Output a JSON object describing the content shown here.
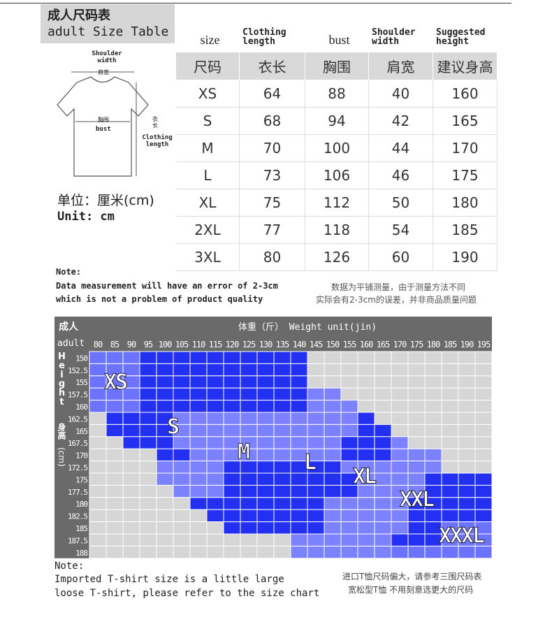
{
  "header": {
    "title_cn": "成人尺码表",
    "title_en": "adult Size Table"
  },
  "diagram": {
    "shoulder_en": "Shoulder width",
    "shoulder_cn": "肩宽",
    "bust_cn": "胸围",
    "bust_en": "bust",
    "length_cn": "衣长",
    "length_en": "Clothing length"
  },
  "unit": {
    "cn": "单位：厘米(cm)",
    "en": "Unit: cm"
  },
  "table": {
    "headers_en": [
      "size",
      "Clothing length",
      "bust",
      "Shoulder width",
      "Suggested height"
    ],
    "headers_cn": [
      "尺码",
      "衣长",
      "胸围",
      "肩宽",
      "建议身高"
    ],
    "rows": [
      [
        "XS",
        64,
        88,
        40,
        160
      ],
      [
        "S",
        68,
        94,
        42,
        165
      ],
      [
        "M",
        70,
        100,
        44,
        170
      ],
      [
        "L",
        73,
        106,
        46,
        175
      ],
      [
        "XL",
        75,
        112,
        50,
        180
      ],
      [
        "2XL",
        77,
        118,
        54,
        185
      ],
      [
        "3XL",
        80,
        126,
        60,
        190
      ]
    ]
  },
  "note1": {
    "label": "Note:",
    "en_lines": [
      "Data measurement will have an error of 2-3cm",
      "which is not a problem of product quality"
    ],
    "cn_lines": [
      "数据为平铺测量，由于测量方法不同",
      "实际会有2-3cm的误差，并非商品质量问题"
    ]
  },
  "chart": {
    "label_cn": "成人",
    "label_en": "adult",
    "weight_title": "体重（斤） Weight unit(jin)",
    "height_label_en": "Height",
    "height_label_cn": "身高",
    "height_unit": "(cm)",
    "weights": [
      80,
      85,
      90,
      95,
      100,
      105,
      110,
      115,
      120,
      125,
      130,
      135,
      140,
      145,
      150,
      155,
      160,
      165,
      170,
      175,
      180,
      185,
      190,
      195
    ],
    "sizes": [
      {
        "name": "XS",
        "color": "#6c74ff"
      },
      {
        "name": "S",
        "color": "#2330f2"
      },
      {
        "name": "M",
        "color": "#7c82ff"
      },
      {
        "name": "L",
        "color": "#2330f2"
      },
      {
        "name": "XL",
        "color": "#7c82ff"
      },
      {
        "name": "XXL",
        "color": "#2330f2"
      },
      {
        "name": "XXXL",
        "color": "#6c74ff"
      }
    ],
    "rows": [
      {
        "height": 150,
        "segments": [
          {
            "size": "XS",
            "from": 80,
            "to": 90
          },
          {
            "size": "S",
            "from": 95,
            "to": 140
          }
        ]
      },
      {
        "height": 152.5,
        "segments": [
          {
            "size": "XS",
            "from": 80,
            "to": 90
          },
          {
            "size": "S",
            "from": 95,
            "to": 140
          }
        ]
      },
      {
        "height": 155,
        "segments": [
          {
            "size": "XS",
            "from": 80,
            "to": 90
          },
          {
            "size": "S",
            "from": 95,
            "to": 140
          }
        ]
      },
      {
        "height": 157.5,
        "segments": [
          {
            "size": "XS",
            "from": 80,
            "to": 90
          },
          {
            "size": "S",
            "from": 95,
            "to": 140
          },
          {
            "size": "M",
            "from": 145,
            "to": 150
          }
        ]
      },
      {
        "height": 160,
        "segments": [
          {
            "size": "XS",
            "from": 80,
            "to": 90
          },
          {
            "size": "S",
            "from": 95,
            "to": 140
          },
          {
            "size": "M",
            "from": 145,
            "to": 155
          }
        ]
      },
      {
        "height": 162.5,
        "segments": [
          {
            "size": "S",
            "from": 85,
            "to": 100
          },
          {
            "size": "M",
            "from": 105,
            "to": 155
          },
          {
            "size": "L",
            "from": 160,
            "to": 160
          }
        ]
      },
      {
        "height": 165,
        "segments": [
          {
            "size": "S",
            "from": 85,
            "to": 100
          },
          {
            "size": "M",
            "from": 105,
            "to": 155
          },
          {
            "size": "L",
            "from": 160,
            "to": 165
          }
        ]
      },
      {
        "height": 167.5,
        "segments": [
          {
            "size": "S",
            "from": 90,
            "to": 100
          },
          {
            "size": "M",
            "from": 105,
            "to": 150
          },
          {
            "size": "L",
            "from": 155,
            "to": 165
          },
          {
            "size": "XL",
            "from": 170,
            "to": 170
          }
        ]
      },
      {
        "height": 170,
        "segments": [
          {
            "size": "S",
            "from": 100,
            "to": 105
          },
          {
            "size": "M",
            "from": 110,
            "to": 150
          },
          {
            "size": "L",
            "from": 155,
            "to": 165
          },
          {
            "size": "XL",
            "from": 170,
            "to": 180
          }
        ]
      },
      {
        "height": 172.5,
        "segments": [
          {
            "size": "M",
            "from": 100,
            "to": 115
          },
          {
            "size": "L",
            "from": 120,
            "to": 150
          },
          {
            "size": "XL",
            "from": 155,
            "to": 180
          }
        ]
      },
      {
        "height": 175,
        "segments": [
          {
            "size": "M",
            "from": 100,
            "to": 115
          },
          {
            "size": "L",
            "from": 120,
            "to": 155
          },
          {
            "size": "XL",
            "from": 160,
            "to": 175
          },
          {
            "size": "XXL",
            "from": 180,
            "to": 195
          }
        ]
      },
      {
        "height": 177.5,
        "segments": [
          {
            "size": "M",
            "from": 105,
            "to": 115
          },
          {
            "size": "L",
            "from": 120,
            "to": 155
          },
          {
            "size": "XL",
            "from": 160,
            "to": 175
          },
          {
            "size": "XXL",
            "from": 180,
            "to": 195
          }
        ]
      },
      {
        "height": 180,
        "segments": [
          {
            "size": "L",
            "from": 110,
            "to": 145
          },
          {
            "size": "XL",
            "from": 150,
            "to": 170
          },
          {
            "size": "XXL",
            "from": 175,
            "to": 195
          }
        ]
      },
      {
        "height": 182.5,
        "segments": [
          {
            "size": "L",
            "from": 115,
            "to": 145
          },
          {
            "size": "XL",
            "from": 150,
            "to": 170
          },
          {
            "size": "XXL",
            "from": 175,
            "to": 195
          }
        ]
      },
      {
        "height": 185,
        "segments": [
          {
            "size": "L",
            "from": 120,
            "to": 145
          },
          {
            "size": "XL",
            "from": 150,
            "to": 170
          },
          {
            "size": "XXL",
            "from": 175,
            "to": 180
          },
          {
            "size": "XXXL",
            "from": 185,
            "to": 195
          }
        ]
      },
      {
        "height": 187.5,
        "segments": [
          {
            "size": "XL",
            "from": 140,
            "to": 165
          },
          {
            "size": "XXL",
            "from": 170,
            "to": 180
          },
          {
            "size": "XXXL",
            "from": 185,
            "to": 195
          }
        ]
      },
      {
        "height": 188,
        "segments": [
          {
            "size": "XL",
            "from": 140,
            "to": 165
          },
          {
            "size": "XXXL",
            "from": 170,
            "to": 195
          }
        ]
      }
    ]
  },
  "note2": {
    "label": "Note:",
    "en_lines": [
      "Imported T-shirt size is a little large",
      "loose T-shirt, please refer to the size chart"
    ],
    "cn_lines": [
      "进口T恤尺码偏大，请参考三围尺码表",
      "宽松型T恤 不用刻意选更大的尺码"
    ]
  }
}
